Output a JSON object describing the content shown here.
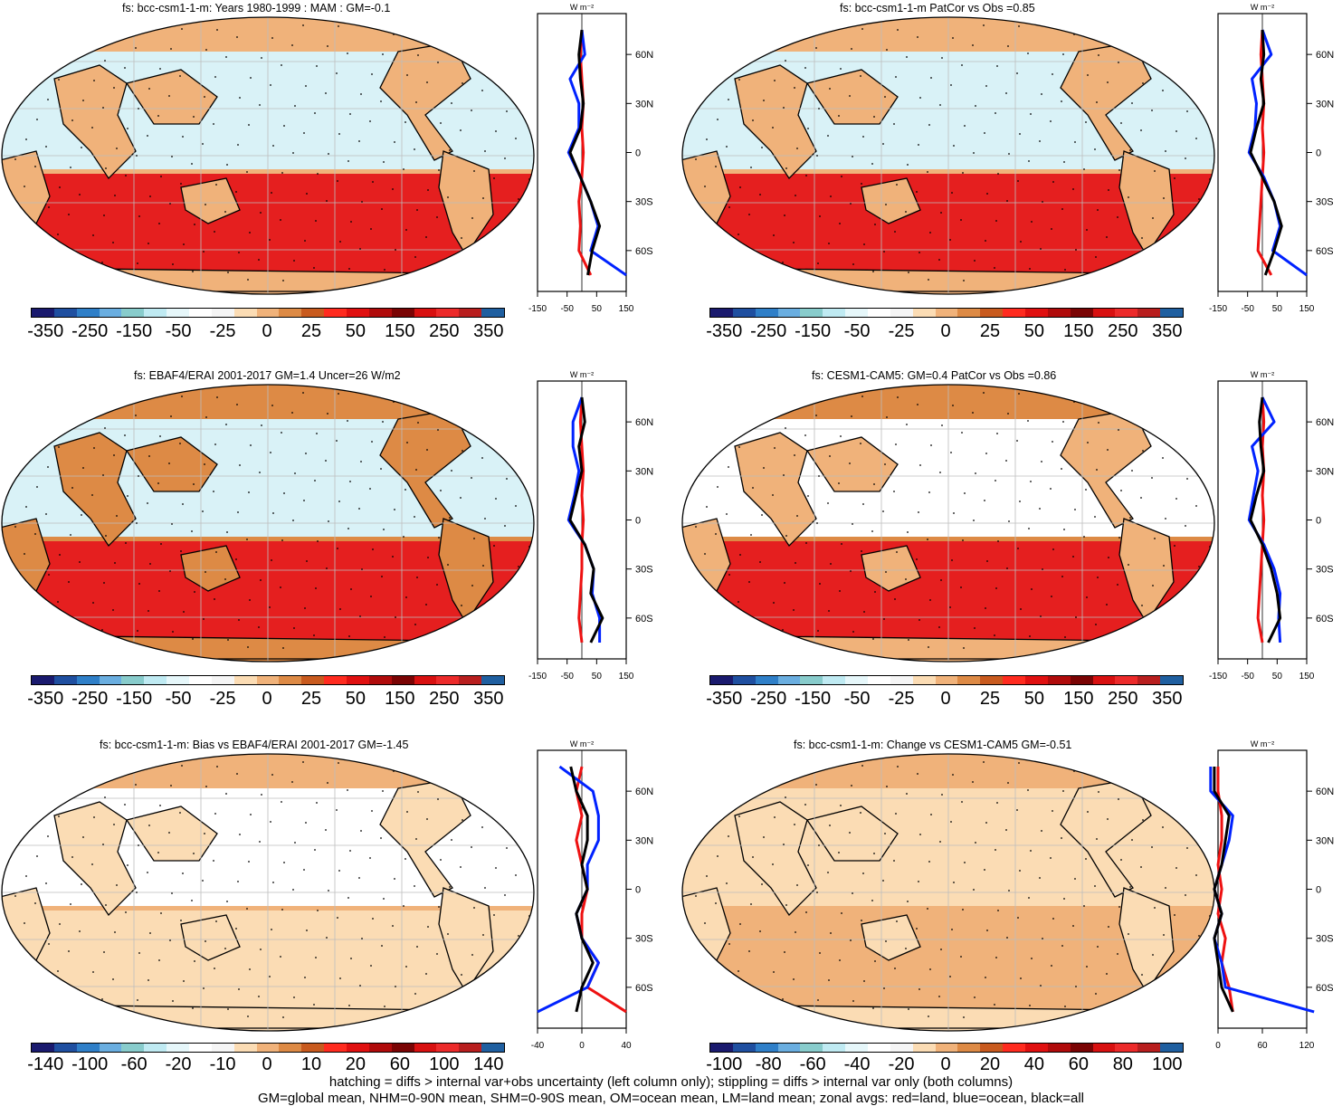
{
  "panels": [
    {
      "id": "p1",
      "title": "fs: bcc-csm1-1-m: Years 1980-1999 : MAM : GM=-0.1",
      "cbar_labels": [
        "-350",
        "-250",
        "-150",
        "-50",
        "-25",
        "0",
        "25",
        "50",
        "150",
        "250",
        "350"
      ],
      "zonal_xticks": [
        "-150",
        "-50",
        "50",
        "150"
      ],
      "zonal_units": "W m⁻²",
      "zonal_yticks": [
        "60N",
        "30N",
        "0",
        "30S",
        "60S"
      ]
    },
    {
      "id": "p2",
      "title": "fs: bcc-csm1-1-m PatCor vs Obs =0.85",
      "cbar_labels": [
        "-350",
        "-250",
        "-150",
        "-50",
        "-25",
        "0",
        "25",
        "50",
        "150",
        "250",
        "350"
      ],
      "zonal_xticks": [
        "-150",
        "-50",
        "50",
        "150"
      ],
      "zonal_units": "W m⁻²",
      "zonal_yticks": [
        "60N",
        "30N",
        "0",
        "30S",
        "60S"
      ]
    },
    {
      "id": "p3",
      "title": "fs: EBAF4/ERAI 2001-2017 GM=1.4 Uncer=26 W/m2",
      "cbar_labels": [
        "-350",
        "-250",
        "-150",
        "-50",
        "-25",
        "0",
        "25",
        "50",
        "150",
        "250",
        "350"
      ],
      "zonal_xticks": [
        "-150",
        "-50",
        "50",
        "150"
      ],
      "zonal_units": "W m⁻²",
      "zonal_yticks": [
        "60N",
        "30N",
        "0",
        "30S",
        "60S"
      ]
    },
    {
      "id": "p4",
      "title": "fs: CESM1-CAM5: GM=0.4 PatCor vs Obs =0.86",
      "cbar_labels": [
        "-350",
        "-250",
        "-150",
        "-50",
        "-25",
        "0",
        "25",
        "50",
        "150",
        "250",
        "350"
      ],
      "zonal_xticks": [
        "-150",
        "-50",
        "50",
        "150"
      ],
      "zonal_units": "W m⁻²",
      "zonal_yticks": [
        "60N",
        "30N",
        "0",
        "30S",
        "60S"
      ]
    },
    {
      "id": "p5",
      "title": "fs: bcc-csm1-1-m: Bias vs EBAF4/ERAI 2001-2017 GM=-1.45",
      "cbar_labels": [
        "-140",
        "-100",
        "-60",
        "-20",
        "-10",
        "0",
        "10",
        "20",
        "60",
        "100",
        "140"
      ],
      "zonal_xticks": [
        "-40",
        "0",
        "40"
      ],
      "zonal_units": "W m⁻²",
      "zonal_yticks": [
        "60N",
        "30N",
        "0",
        "30S",
        "60S"
      ]
    },
    {
      "id": "p6",
      "title": "fs: bcc-csm1-1-m: Change vs CESM1-CAM5 GM=-0.51",
      "cbar_labels": [
        "-100",
        "-80",
        "-60",
        "-40",
        "-20",
        "0",
        "20",
        "40",
        "60",
        "80",
        "100"
      ],
      "zonal_xticks": [
        "0",
        "60",
        "120"
      ],
      "zonal_units": "W m⁻²",
      "zonal_yticks": [
        "60N",
        "30N",
        "0",
        "30S",
        "60S"
      ]
    }
  ],
  "colors": {
    "cbar": [
      "#1a1a6e",
      "#1f4fa0",
      "#2f7fc8",
      "#6aaee0",
      "#88cccc",
      "#bfeaf2",
      "#e6f7fa",
      "#ffffff",
      "#f5f5f5",
      "#fbdcb4",
      "#f0b27a",
      "#dd8a45",
      "#c85a1e",
      "#ff2b1f",
      "#e01010",
      "#b00b0b",
      "#7a0404",
      "#d81010",
      "#ec2a2a",
      "#b81e1e",
      "#1f5fa0"
    ],
    "land": "#f0a868",
    "ocean_cool": "#d9f2f7",
    "warm_band": "#e51f1f",
    "neutral": "#ffffff",
    "blue_line": "#0022ff",
    "red_line": "#ee1111",
    "black_line": "#000000"
  },
  "footer": {
    "line1": "hatching = diffs > internal var+obs uncertainty (left column only); stippling = diffs > internal var only (both columns)",
    "line2": "GM=global mean, NHM=0-90N mean, SHM=0-90S mean, OM=ocean mean, LM=land mean; zonal avgs: red=land, blue=ocean, black=all"
  },
  "chart_data": [
    {
      "type": "heatmap",
      "title": "fs: bcc-csm1-1-m: Years 1980-1999 : MAM : GM=-0.1",
      "colorbar": [
        -350,
        -250,
        -150,
        -50,
        -25,
        0,
        25,
        50,
        150,
        250,
        350
      ],
      "zonal": {
        "lat": [
          -75,
          -60,
          -45,
          -30,
          -15,
          0,
          15,
          30,
          45,
          60,
          75
        ],
        "all": [
          20,
          35,
          60,
          30,
          -5,
          -40,
          -5,
          5,
          -5,
          -10,
          0
        ],
        "ocean": [
          150,
          30,
          55,
          30,
          -5,
          -45,
          -10,
          -10,
          -40,
          10,
          0
        ],
        "land": [
          30,
          -10,
          -5,
          -10,
          0,
          5,
          0,
          5,
          0,
          -5,
          0
        ]
      }
    },
    {
      "type": "heatmap",
      "title": "fs: bcc-csm1-1-m PatCor vs Obs =0.85",
      "colorbar": [
        -350,
        -250,
        -150,
        -50,
        -25,
        0,
        25,
        50,
        150,
        250,
        350
      ],
      "zonal": {
        "lat": [
          -75,
          -60,
          -45,
          -30,
          -15,
          0,
          15,
          30,
          45,
          60,
          75
        ],
        "all": [
          10,
          40,
          65,
          40,
          0,
          -40,
          -20,
          5,
          -5,
          5,
          0
        ],
        "ocean": [
          150,
          35,
          60,
          40,
          5,
          -45,
          -25,
          -20,
          -35,
          30,
          0
        ],
        "land": [
          30,
          -15,
          -10,
          -5,
          0,
          5,
          0,
          5,
          0,
          -5,
          0
        ]
      }
    },
    {
      "type": "heatmap",
      "title": "fs: EBAF4/ERAI 2001-2017 GM=1.4 Uncer=26 W/m2",
      "colorbar": [
        -350,
        -250,
        -150,
        -50,
        -25,
        0,
        25,
        50,
        150,
        250,
        350
      ],
      "zonal": {
        "lat": [
          -75,
          -60,
          -45,
          -30,
          -15,
          0,
          15,
          30,
          45,
          60,
          75
        ],
        "all": [
          30,
          70,
          30,
          40,
          10,
          -40,
          -20,
          0,
          -10,
          10,
          0
        ],
        "ocean": [
          60,
          60,
          35,
          40,
          10,
          -45,
          -25,
          -10,
          -30,
          -30,
          0
        ],
        "land": [
          0,
          -10,
          -5,
          0,
          0,
          5,
          0,
          5,
          0,
          -5,
          0
        ]
      }
    },
    {
      "type": "heatmap",
      "title": "fs: CESM1-CAM5: GM=0.4 PatCor vs Obs =0.86",
      "colorbar": [
        -350,
        -250,
        -150,
        -50,
        -25,
        0,
        25,
        50,
        150,
        250,
        350
      ],
      "zonal": {
        "lat": [
          -75,
          -60,
          -45,
          -30,
          -15,
          0,
          15,
          30,
          45,
          60,
          75
        ],
        "all": [
          20,
          60,
          50,
          30,
          0,
          -40,
          -20,
          5,
          -5,
          -10,
          0
        ],
        "ocean": [
          60,
          55,
          60,
          40,
          5,
          -45,
          -30,
          -15,
          -35,
          40,
          0
        ],
        "land": [
          0,
          -15,
          -10,
          -5,
          0,
          5,
          0,
          5,
          0,
          5,
          0
        ]
      }
    },
    {
      "type": "heatmap",
      "title": "fs: bcc-csm1-1-m: Bias vs EBAF4/ERAI 2001-2017 GM=-1.45",
      "colorbar": [
        -140,
        -100,
        -60,
        -20,
        -10,
        0,
        10,
        20,
        60,
        100,
        140
      ],
      "zonal": {
        "lat": [
          -75,
          -60,
          -45,
          -30,
          -15,
          0,
          15,
          30,
          45,
          60,
          75
        ],
        "all": [
          -5,
          0,
          10,
          0,
          -5,
          5,
          0,
          5,
          5,
          -5,
          -10
        ],
        "ocean": [
          -40,
          5,
          15,
          0,
          -5,
          5,
          5,
          15,
          15,
          10,
          -20
        ],
        "land": [
          40,
          5,
          15,
          0,
          0,
          5,
          0,
          -5,
          0,
          -5,
          0
        ]
      }
    },
    {
      "type": "heatmap",
      "title": "fs: bcc-csm1-1-m: Change vs CESM1-CAM5 GM=-0.51",
      "colorbar": [
        -100,
        -80,
        -60,
        -40,
        -20,
        0,
        20,
        40,
        60,
        80,
        100
      ],
      "zonal": {
        "lat": [
          -75,
          -60,
          -45,
          -30,
          -15,
          0,
          15,
          30,
          45,
          60,
          75
        ],
        "all": [
          20,
          5,
          0,
          -5,
          5,
          -5,
          5,
          10,
          15,
          -5,
          -5
        ],
        "ocean": [
          130,
          10,
          5,
          -5,
          5,
          -5,
          5,
          15,
          20,
          -10,
          -10
        ],
        "land": [
          20,
          15,
          5,
          10,
          0,
          5,
          0,
          5,
          5,
          0,
          0
        ]
      }
    }
  ]
}
